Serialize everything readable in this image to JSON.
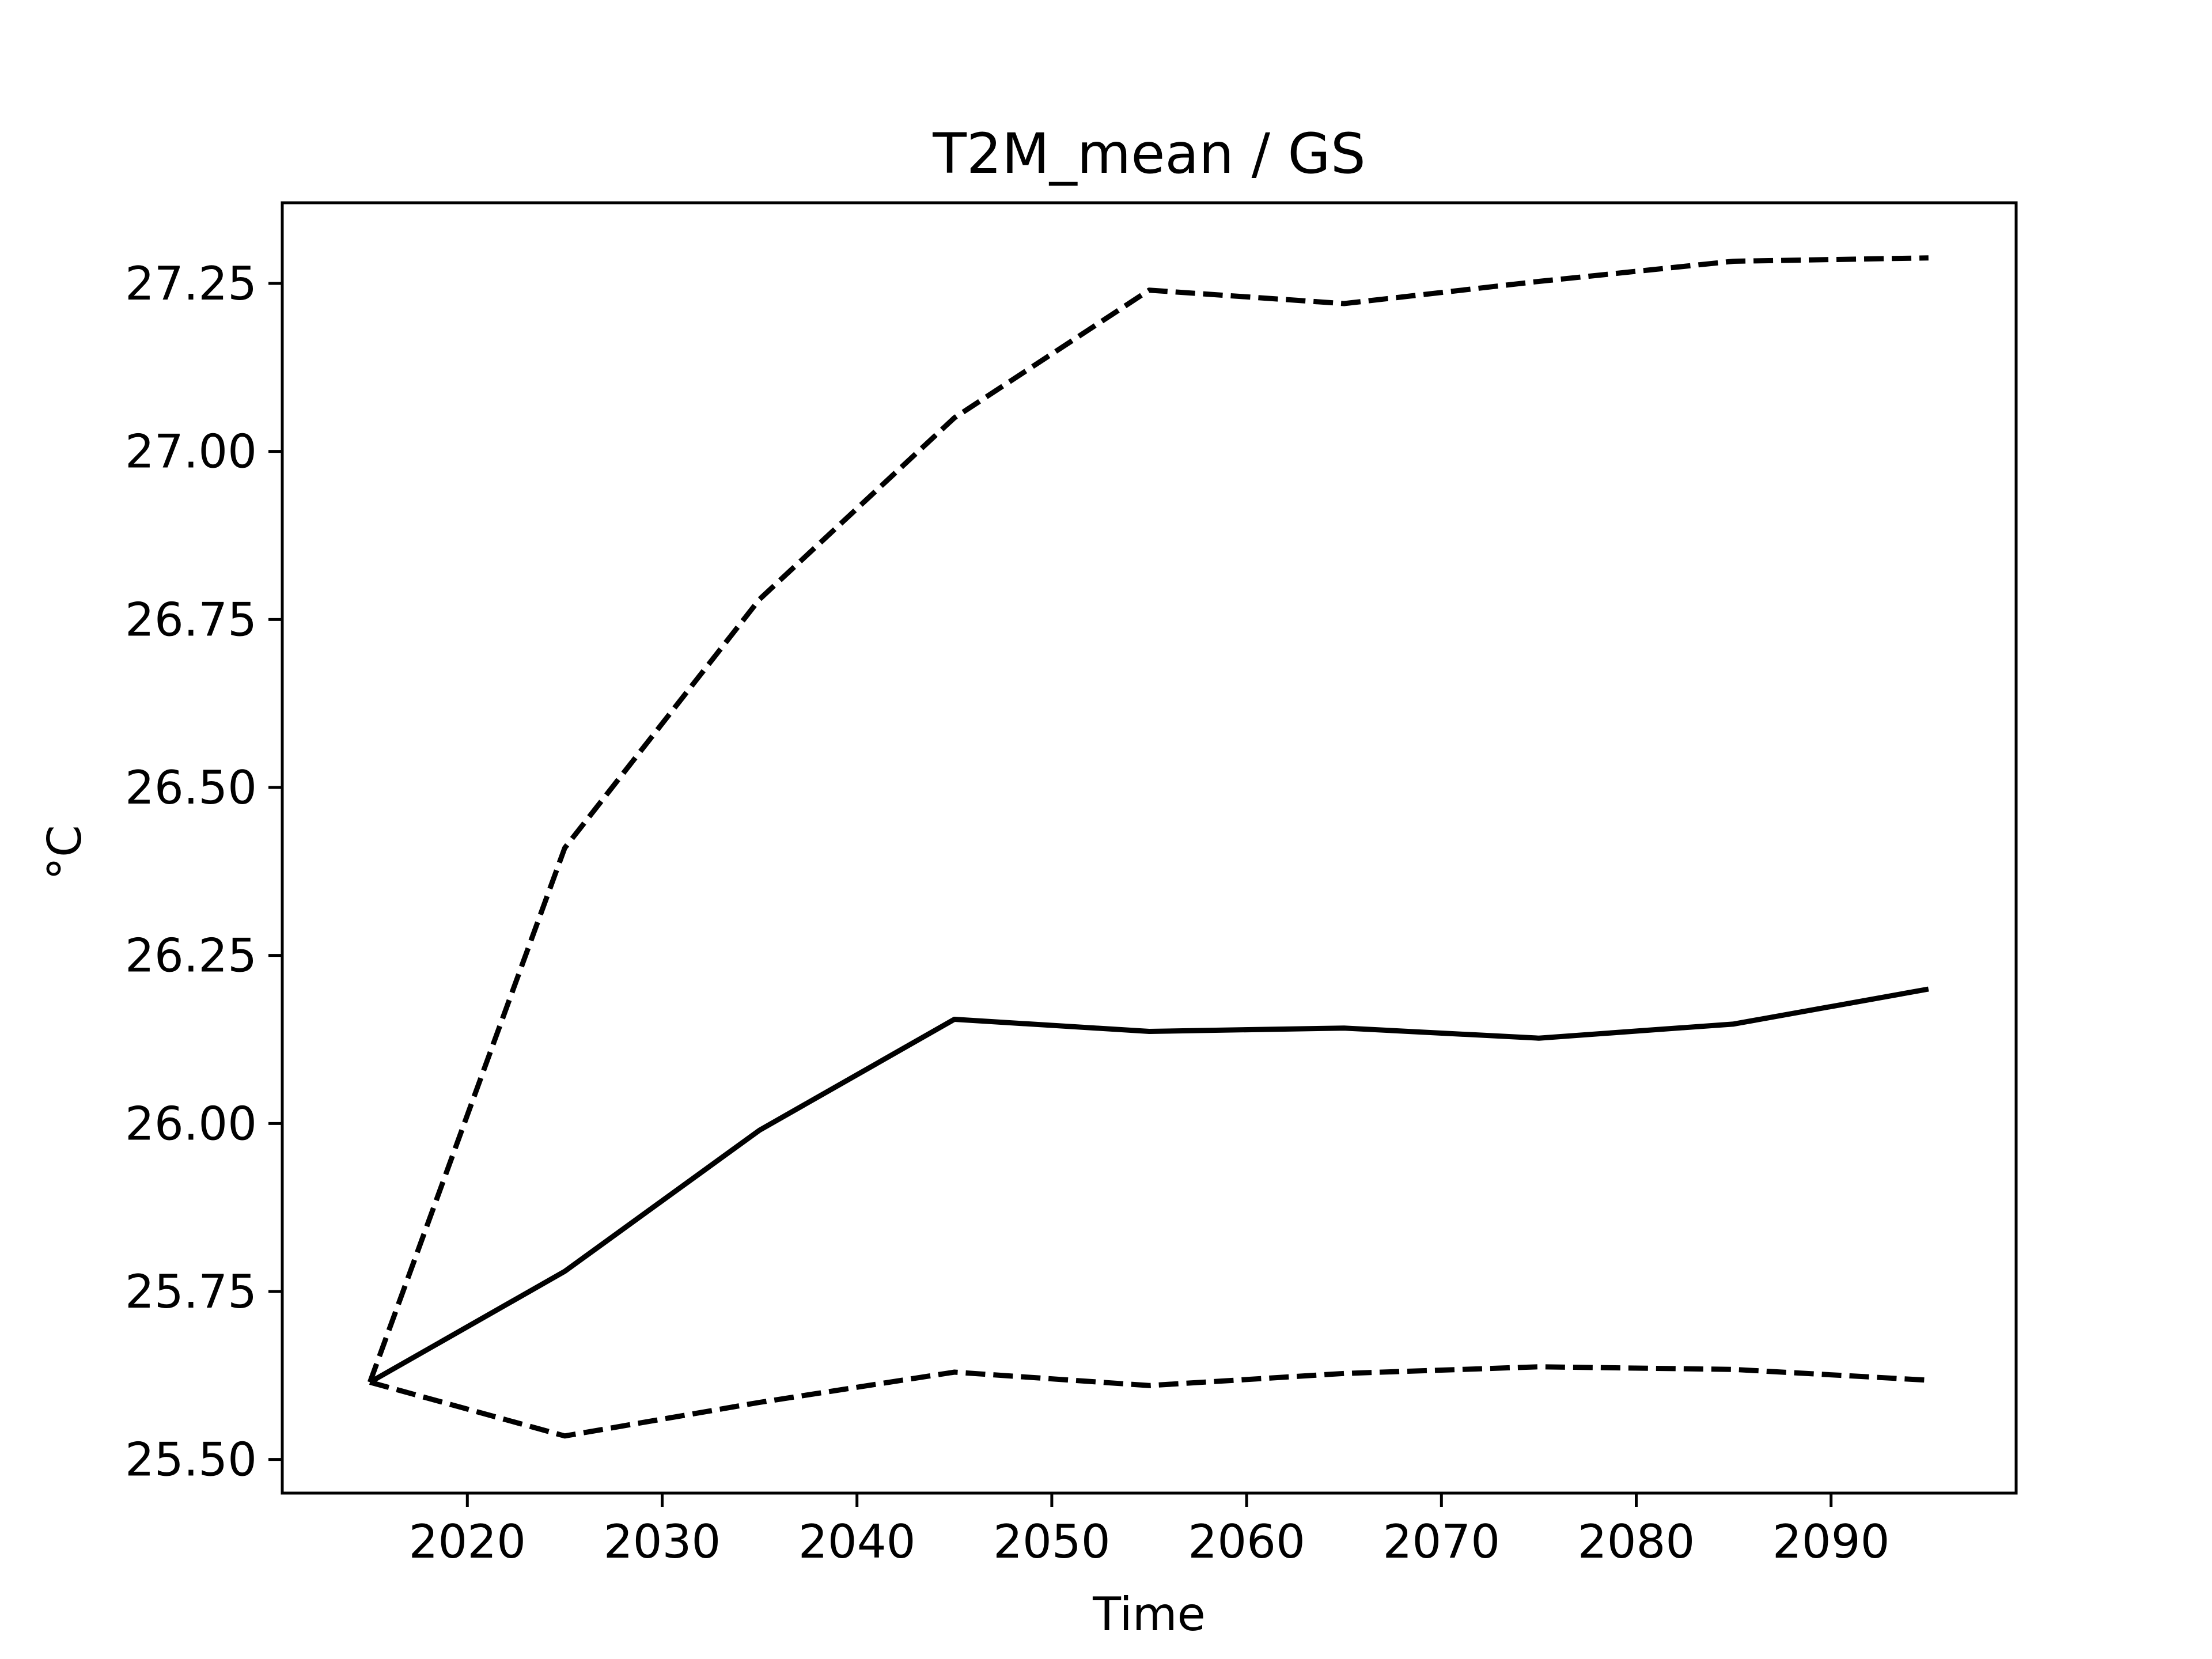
{
  "chart_data": {
    "type": "line",
    "title": "T2M_mean / GS",
    "xlabel": "Time",
    "ylabel": "°C",
    "xlim": [
      2010.5,
      2099.5
    ],
    "ylim": [
      25.45,
      27.37
    ],
    "xticks": [
      2020,
      2030,
      2040,
      2050,
      2060,
      2070,
      2080,
      2090
    ],
    "xtick_labels": [
      "2020",
      "2030",
      "2040",
      "2050",
      "2060",
      "2070",
      "2080",
      "2090"
    ],
    "yticks": [
      25.5,
      25.75,
      26.0,
      26.25,
      26.5,
      26.75,
      27.0,
      27.25
    ],
    "ytick_labels": [
      "25.50",
      "25.75",
      "26.00",
      "26.25",
      "26.50",
      "26.75",
      "27.00",
      "27.25"
    ],
    "grid": false,
    "x": [
      2015,
      2025,
      2035,
      2045,
      2055,
      2065,
      2075,
      2085,
      2095
    ],
    "series": [
      {
        "role": "mean",
        "style": "solid",
        "color": "#000000",
        "values": [
          25.615,
          25.78,
          25.99,
          26.155,
          26.137,
          26.142,
          26.127,
          26.148,
          26.2
        ]
      },
      {
        "role": "upper",
        "style": "dashed",
        "color": "#000000",
        "values": [
          25.615,
          26.41,
          26.78,
          27.05,
          27.24,
          27.22,
          27.253,
          27.283,
          27.288
        ]
      },
      {
        "role": "lower",
        "style": "dashed",
        "color": "#000000",
        "values": [
          25.615,
          25.535,
          25.585,
          25.63,
          25.61,
          25.628,
          25.638,
          25.634,
          25.618
        ]
      }
    ]
  }
}
